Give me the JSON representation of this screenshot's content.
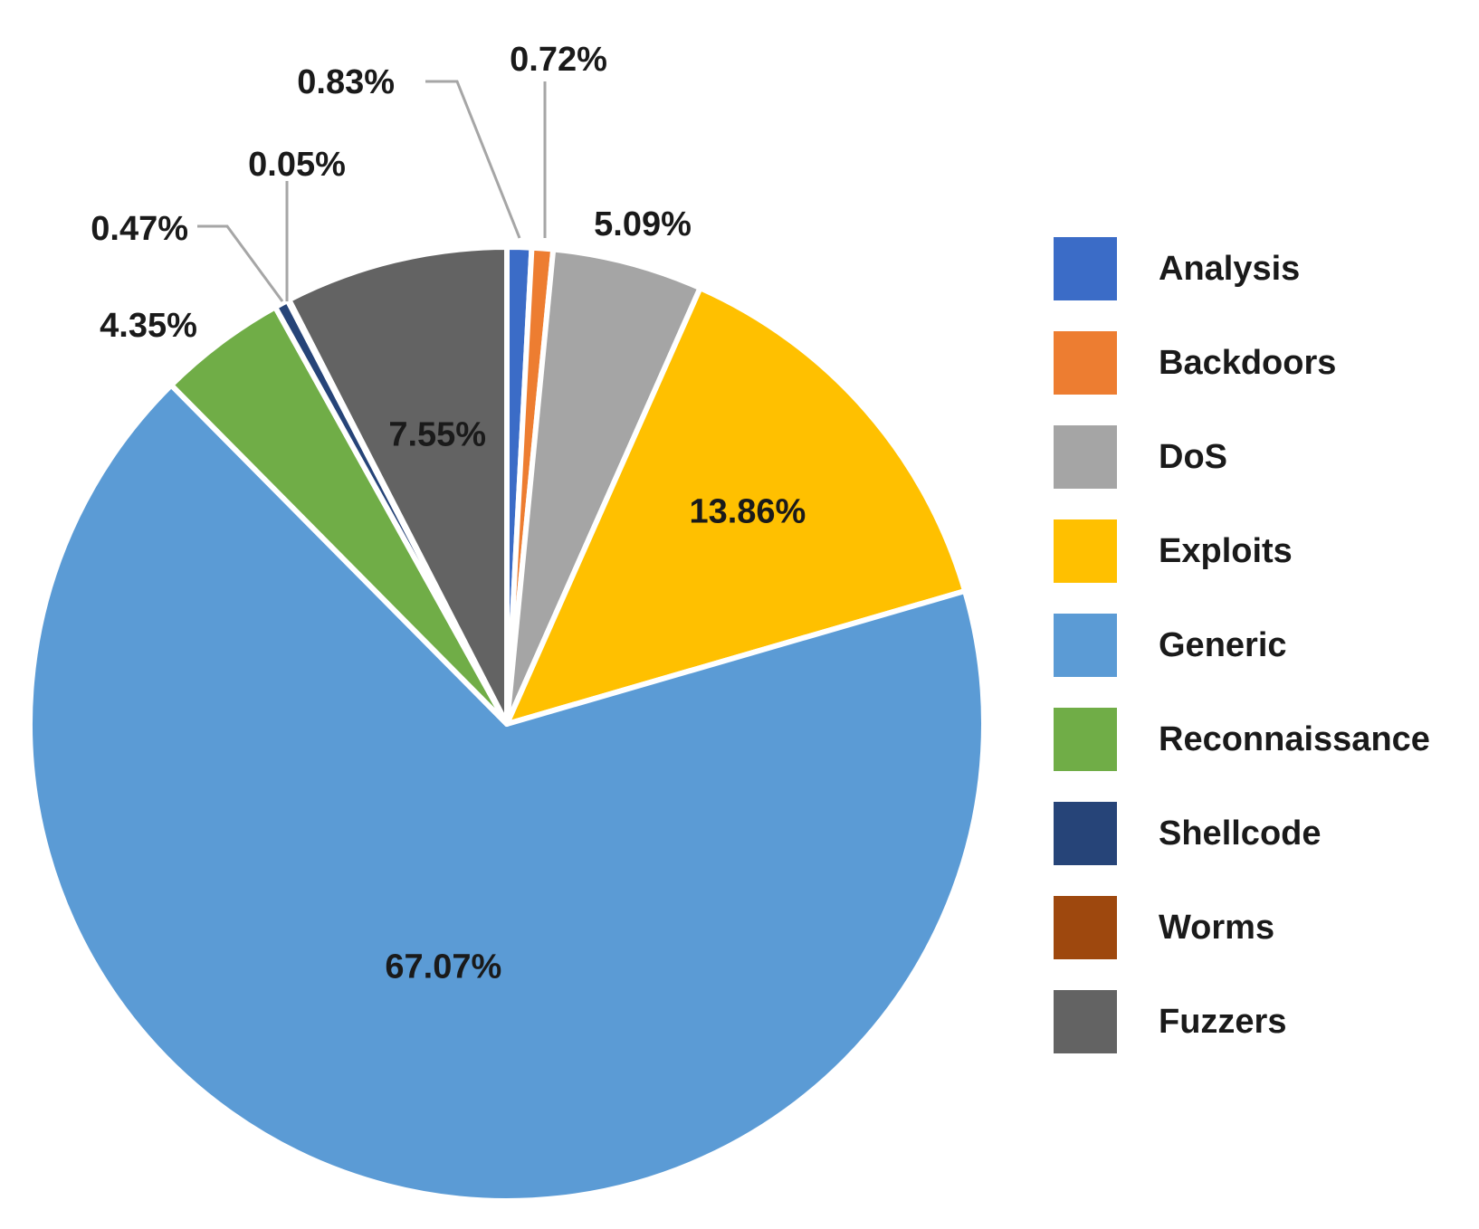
{
  "chart_data": {
    "type": "pie",
    "title": "",
    "legend_position": "right",
    "slices": [
      {
        "name": "Analysis",
        "value": 0.83,
        "label": "0.83%",
        "color": "#3b6cc7"
      },
      {
        "name": "Backdoors",
        "value": 0.72,
        "label": "0.72%",
        "color": "#ed7d31"
      },
      {
        "name": "DoS",
        "value": 5.09,
        "label": "5.09%",
        "color": "#a5a5a5"
      },
      {
        "name": "Exploits",
        "value": 13.86,
        "label": "13.86%",
        "color": "#ffc000"
      },
      {
        "name": "Generic",
        "value": 67.07,
        "label": "67.07%",
        "color": "#5b9bd5"
      },
      {
        "name": "Reconnaissance",
        "value": 4.35,
        "label": "4.35%",
        "color": "#70ad47"
      },
      {
        "name": "Shellcode",
        "value": 0.47,
        "label": "0.47%",
        "color": "#264478"
      },
      {
        "name": "Worms",
        "value": 0.05,
        "label": "0.05%",
        "color": "#9e480e"
      },
      {
        "name": "Fuzzers",
        "value": 7.55,
        "label": "7.55%",
        "color": "#636363"
      }
    ]
  }
}
